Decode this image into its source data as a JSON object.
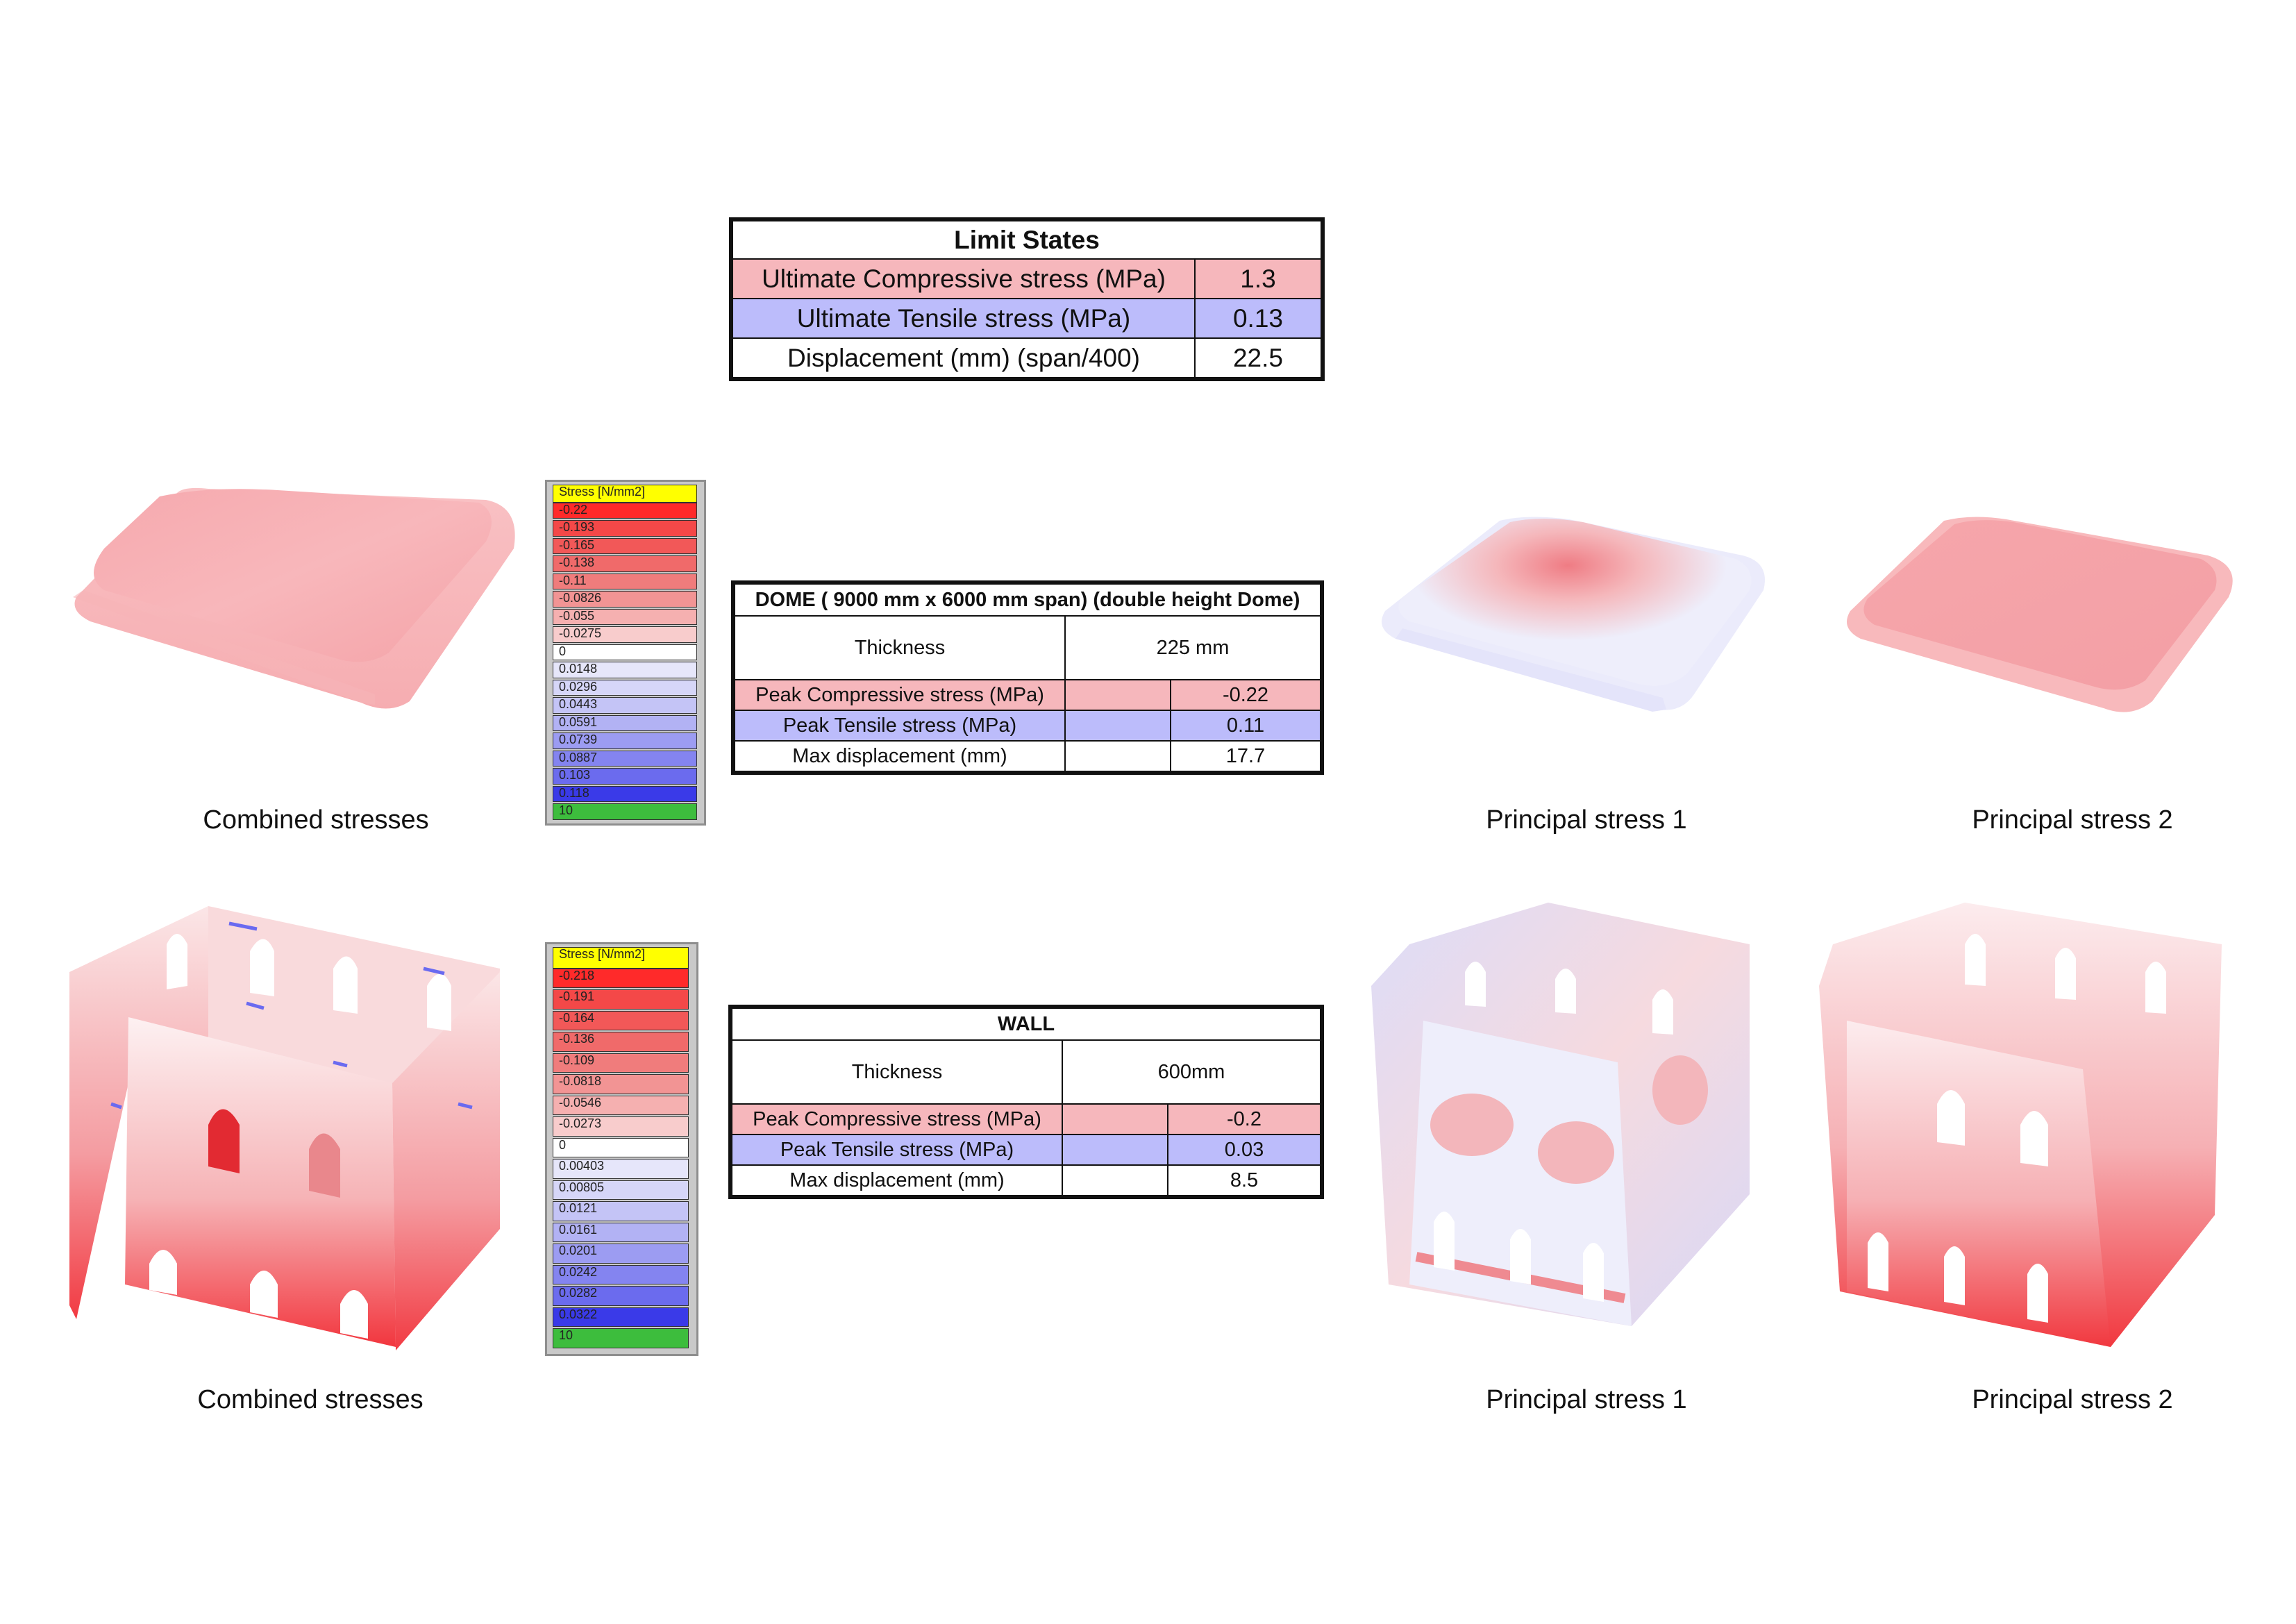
{
  "limit_states": {
    "title": "Limit States",
    "rows": [
      {
        "label": "Ultimate Compressive stress (MPa)",
        "value": "1.3",
        "tone": "pink"
      },
      {
        "label": "Ultimate Tensile stress (MPa)",
        "value": "0.13",
        "tone": "blue"
      },
      {
        "label": "Displacement (mm) (span/400)",
        "value": "22.5",
        "tone": "white"
      }
    ]
  },
  "dome_table": {
    "title": "DOME ( 9000 mm x 6000 mm span) (double height Dome)",
    "thickness_label": "Thickness",
    "thickness_value": "225 mm",
    "rows": [
      {
        "label": "Peak Compressive stress (MPa)",
        "value": "-0.22",
        "tone": "pink"
      },
      {
        "label": "Peak Tensile stress (MPa)",
        "value": "0.11",
        "tone": "blue"
      },
      {
        "label": "Max displacement (mm)",
        "value": "17.7",
        "tone": "white"
      }
    ]
  },
  "wall_table": {
    "title": "WALL",
    "thickness_label": "Thickness",
    "thickness_value": "600mm",
    "rows": [
      {
        "label": "Peak Compressive stress (MPa)",
        "value": "-0.2",
        "tone": "pink"
      },
      {
        "label": "Peak Tensile stress (MPa)",
        "value": "0.03",
        "tone": "blue"
      },
      {
        "label": "Max displacement (mm)",
        "value": "8.5",
        "tone": "white"
      }
    ]
  },
  "dome_legend": {
    "title": "Stress [N/mm2]",
    "entries": [
      "-0.22",
      "-0.193",
      "-0.165",
      "-0.138",
      "-0.11",
      "-0.0826",
      "-0.055",
      "-0.0275",
      "0",
      "0.0148",
      "0.0296",
      "0.0443",
      "0.0591",
      "0.0739",
      "0.0887",
      "0.103",
      "0.118",
      "10"
    ],
    "colors": [
      "#ff2a2a",
      "#f44848",
      "#f25858",
      "#f06a6a",
      "#f07c7c",
      "#f29494",
      "#f5b0b0",
      "#f8cccc",
      "#ffffff",
      "#e6e6fa",
      "#d6d6f8",
      "#c4c4f6",
      "#b2b2f4",
      "#9c9cf2",
      "#8484f0",
      "#6b6bee",
      "#3a3ae8",
      "#3dbd3d"
    ]
  },
  "wall_legend": {
    "title": "Stress [N/mm2]",
    "entries": [
      "-0.218",
      "-0.191",
      "-0.164",
      "-0.136",
      "-0.109",
      "-0.0818",
      "-0.0546",
      "-0.0273",
      "0",
      "0.00403",
      "0.00805",
      "0.0121",
      "0.0161",
      "0.0201",
      "0.0242",
      "0.0282",
      "0.0322",
      "10"
    ],
    "colors": [
      "#ff2a2a",
      "#f44848",
      "#f25858",
      "#f06a6a",
      "#f07c7c",
      "#f29494",
      "#f5b0b0",
      "#f8cccc",
      "#ffffff",
      "#e6e6fa",
      "#d6d6f8",
      "#c4c4f6",
      "#b2b2f4",
      "#9c9cf2",
      "#8484f0",
      "#6b6bee",
      "#3a3ae8",
      "#3dbd3d"
    ]
  },
  "captions": {
    "dome_combined": "Combined stresses",
    "dome_p1": "Principal stress 1",
    "dome_p2": "Principal stress 2",
    "wall_combined": "Combined stresses",
    "wall_p1": "Principal stress 1",
    "wall_p2": "Principal stress 2"
  },
  "colors": {
    "compressive": "#f6b7bc",
    "tensile": "#bcbcfb",
    "legend_title_bg": "#ffff00"
  }
}
